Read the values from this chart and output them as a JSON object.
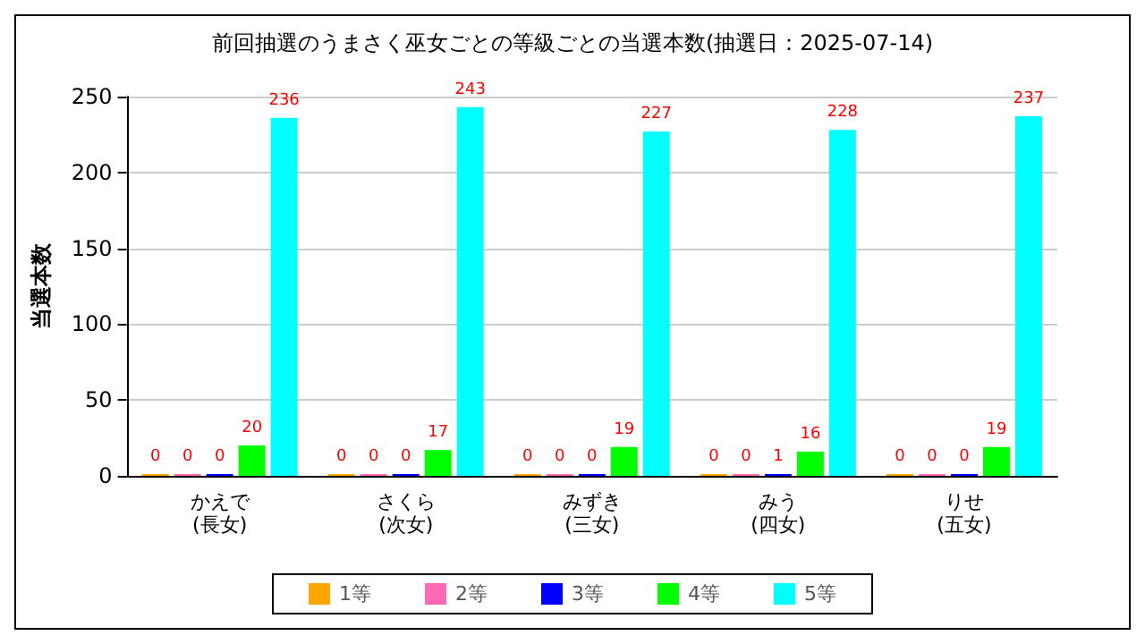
{
  "chart_data": {
    "type": "bar",
    "title": "前回抽選のうまさく巫女ごとの等級ごとの当選本数(抽選日：2025-07-14)",
    "ylabel": "当選本数",
    "categories": [
      "かえで\n(長女)",
      "さくら\n(次女)",
      "みずき\n(三女)",
      "みう\n(四女)",
      "りせ\n(五女)"
    ],
    "series": [
      {
        "name": "1等",
        "color": "#ffa500",
        "values": [
          0,
          0,
          0,
          0,
          0
        ]
      },
      {
        "name": "2等",
        "color": "#ff69b4",
        "values": [
          0,
          0,
          0,
          0,
          0
        ]
      },
      {
        "name": "3等",
        "color": "#0000ff",
        "values": [
          0,
          0,
          0,
          1,
          0
        ]
      },
      {
        "name": "4等",
        "color": "#00ff00",
        "values": [
          20,
          17,
          19,
          16,
          19
        ]
      },
      {
        "name": "5等",
        "color": "#00ffff",
        "values": [
          236,
          243,
          227,
          228,
          237
        ]
      }
    ],
    "ylim": [
      0,
      250
    ],
    "yticks": [
      0,
      50,
      100,
      150,
      200,
      250
    ],
    "grid": "y",
    "legend": "bottom",
    "data_labels": true
  }
}
